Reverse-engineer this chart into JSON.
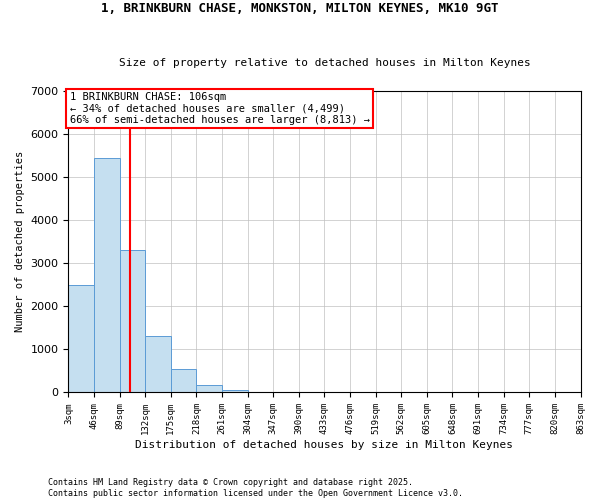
{
  "title": "1, BRINKBURN CHASE, MONKSTON, MILTON KEYNES, MK10 9GT",
  "subtitle": "Size of property relative to detached houses in Milton Keynes",
  "xlabel": "Distribution of detached houses by size in Milton Keynes",
  "ylabel": "Number of detached properties",
  "property_size": 106,
  "annotation_text": "1 BRINKBURN CHASE: 106sqm\n← 34% of detached houses are smaller (4,499)\n66% of semi-detached houses are larger (8,813) →",
  "bin_edges": [
    3,
    46,
    89,
    132,
    175,
    218,
    261,
    304,
    347,
    390,
    433,
    476,
    519,
    562,
    605,
    648,
    691,
    734,
    777,
    820,
    863
  ],
  "bin_counts": [
    2500,
    5450,
    3300,
    1300,
    550,
    170,
    55,
    20,
    8,
    4,
    3,
    2,
    1,
    1,
    0,
    0,
    0,
    0,
    0,
    0
  ],
  "bar_facecolor": "#c5dff0",
  "bar_edgecolor": "#5b9bd5",
  "vline_color": "red",
  "grid_color": "#c0c0c0",
  "background_color": "#ffffff",
  "ylim": [
    0,
    7000
  ],
  "yticks": [
    0,
    1000,
    2000,
    3000,
    4000,
    5000,
    6000,
    7000
  ],
  "footnote": "Contains HM Land Registry data © Crown copyright and database right 2025.\nContains public sector information licensed under the Open Government Licence v3.0."
}
